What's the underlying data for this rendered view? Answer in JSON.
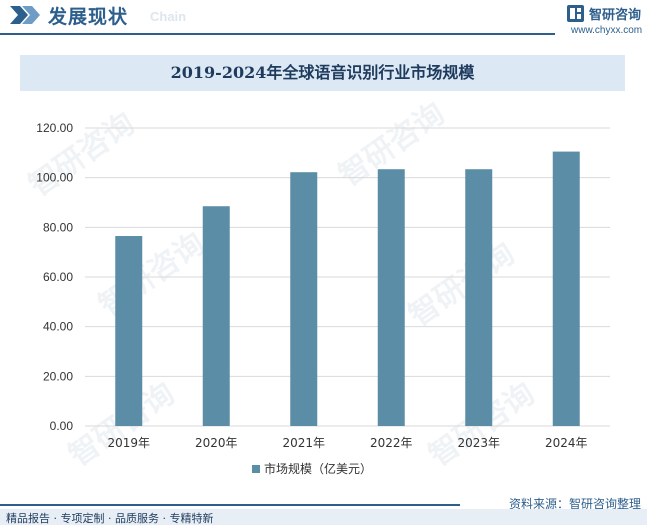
{
  "header": {
    "section_title": "发展现状",
    "section_subtitle": "Chain",
    "logo_name": "智研咨询",
    "logo_url": "www.chyxx.com"
  },
  "chart_data": {
    "type": "bar",
    "title": "2019-2024年全球语音识别行业市场规模",
    "categories": [
      "2019年",
      "2020年",
      "2021年",
      "2022年",
      "2023年",
      "2024年"
    ],
    "series": [
      {
        "name": "市场规模（亿美元）",
        "values": [
          76.5,
          88.5,
          102.2,
          103.4,
          103.4,
          110.5
        ]
      }
    ],
    "y_ticks": [
      "0.00",
      "20.00",
      "40.00",
      "60.00",
      "80.00",
      "100.00",
      "120.00"
    ],
    "ylim": [
      0,
      120
    ],
    "xlabel": "",
    "ylabel": "",
    "grid": true,
    "legend_position": "bottom-center",
    "colors": {
      "bar": "#5b8ea6",
      "grid": "#d9d9d9",
      "axis_text": "#333333"
    }
  },
  "footer": {
    "source": "资料来源：智研咨询整理",
    "tagline": "精品报告 · 专项定制 · 品质服务 · 专精特新"
  },
  "watermark_text": "智研咨询"
}
